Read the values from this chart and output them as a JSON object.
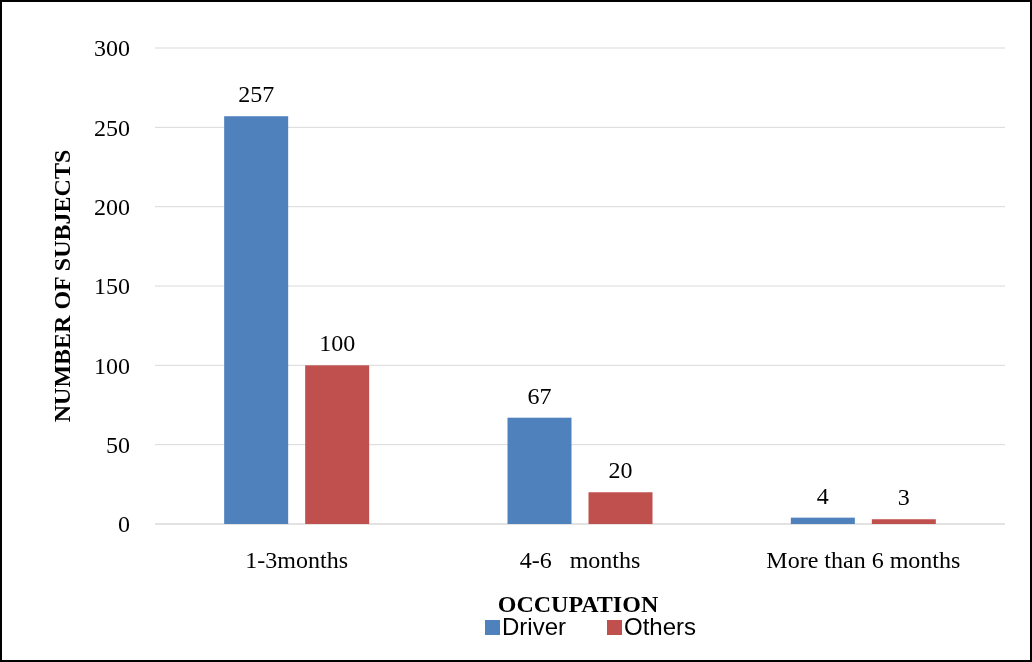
{
  "chart_data": {
    "type": "bar",
    "xlabel": "OCCUPATION",
    "ylabel": "NUMBER OF SUBJECTS",
    "categories": [
      "1-3months",
      "4-6   months",
      "More than 6 months"
    ],
    "series": [
      {
        "name": "Driver",
        "color": "#4f81bd",
        "values": [
          257,
          67,
          4
        ]
      },
      {
        "name": "Others",
        "color": "#c0504d",
        "values": [
          100,
          20,
          3
        ]
      }
    ],
    "ylim": [
      0,
      300
    ],
    "yticks": [
      0,
      50,
      100,
      150,
      200,
      250,
      300
    ],
    "grid": "y",
    "legend": "bottom",
    "data_labels": true
  }
}
